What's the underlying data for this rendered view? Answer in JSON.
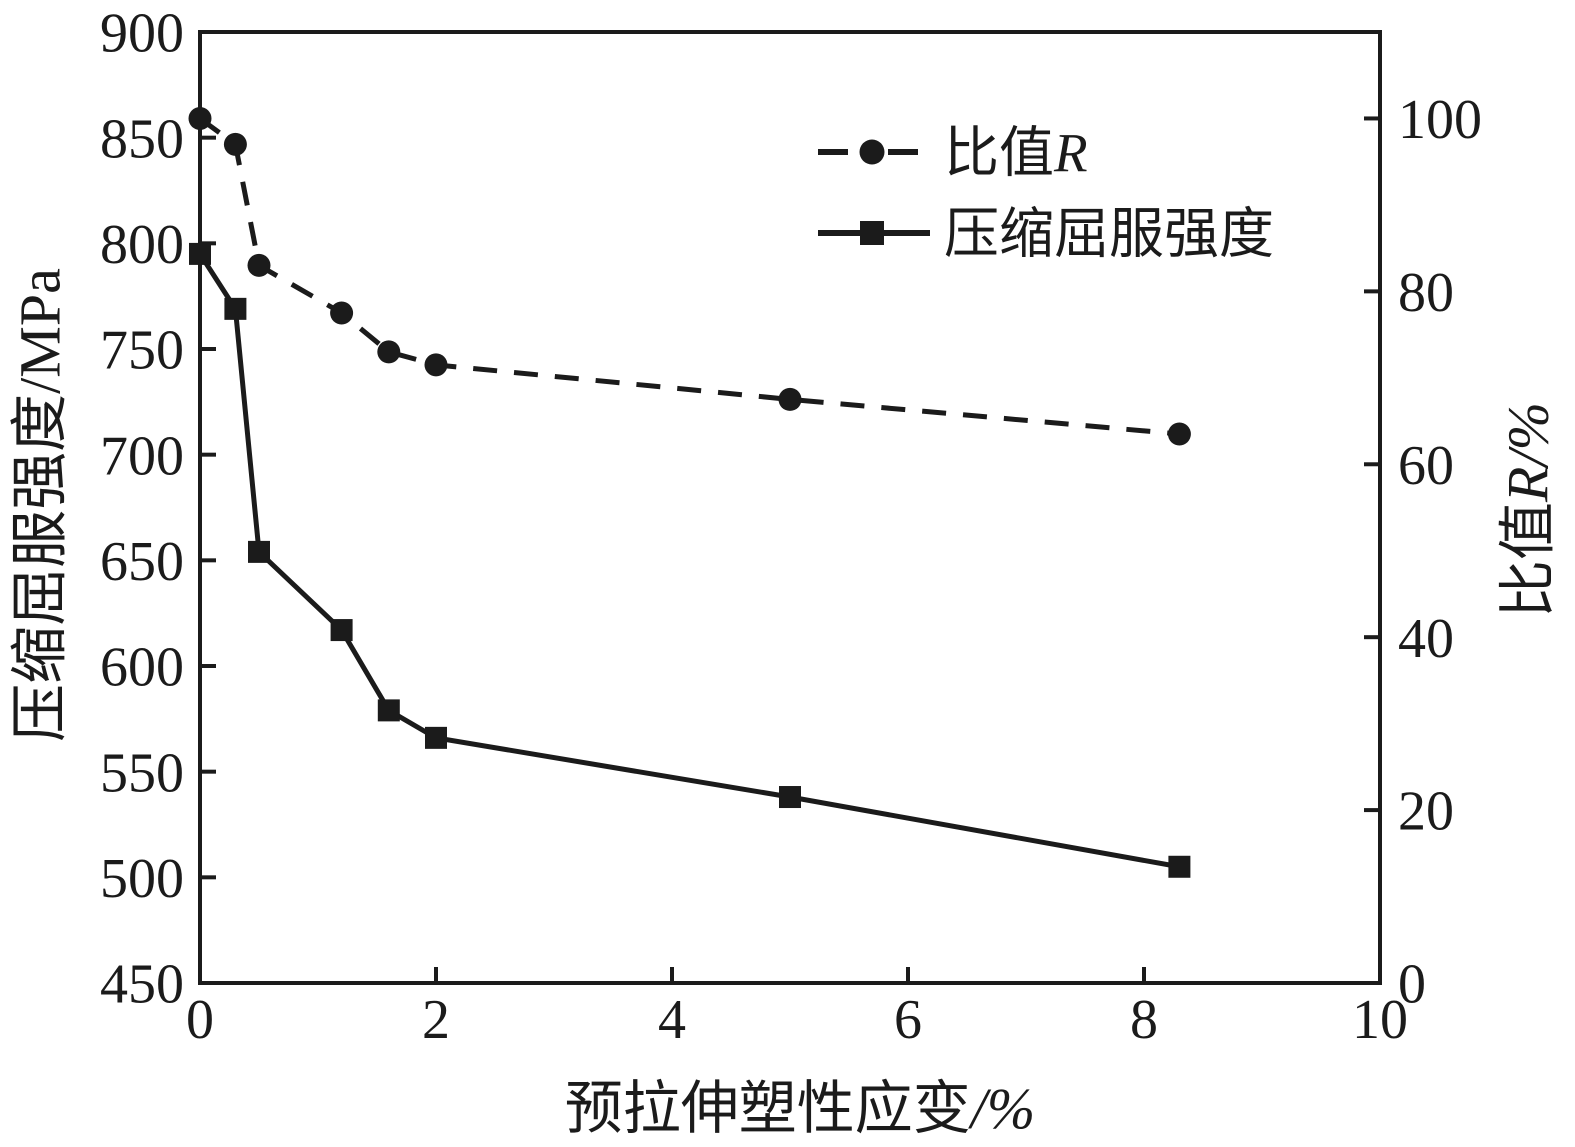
{
  "colors": {
    "ink": "#1b1b1b",
    "background": "#ffffff"
  },
  "chart_data": {
    "type": "line",
    "x": [
      0,
      0.3,
      0.5,
      1.2,
      1.6,
      2.0,
      5.0,
      8.3
    ],
    "series": [
      {
        "name": "比值R",
        "axis": "right",
        "marker": "circle",
        "line_style": "dashed",
        "values": [
          100,
          97,
          83,
          77.5,
          73,
          71.5,
          67.5,
          63.5
        ]
      },
      {
        "name": "压缩屈服强度",
        "axis": "left",
        "marker": "square",
        "line_style": "solid",
        "values": [
          795,
          769,
          654,
          617,
          579,
          566,
          538,
          505
        ]
      }
    ],
    "xlabel": "预拉伸塑性应变/%",
    "ylabel_left": "压缩屈服强度/MPa",
    "ylabel_right": "比值R/%",
    "xlim": [
      0,
      10
    ],
    "ylim_left": [
      450,
      900
    ],
    "ylim_right": [
      0,
      110
    ],
    "xticks": [
      0,
      2,
      4,
      6,
      8,
      10
    ],
    "yticks_left": [
      450,
      500,
      550,
      600,
      650,
      700,
      750,
      800,
      850,
      900
    ],
    "yticks_right": [
      0,
      20,
      40,
      60,
      80,
      100
    ],
    "grid": false,
    "legend_position": "inside-top-right"
  },
  "titles": {
    "x_parts": [
      {
        "t": "预拉伸塑性应变"
      },
      {
        "t": "/%",
        "italic": true
      }
    ],
    "left_parts": [
      {
        "t": "压缩屈服强度/MPa"
      }
    ],
    "right_parts": [
      {
        "t": "比值"
      },
      {
        "t": "R",
        "italic": true
      },
      {
        "t": "/%",
        "italic": true
      }
    ]
  },
  "legend": {
    "items": [
      {
        "marker": "circle",
        "line_style": "dashed",
        "parts": [
          {
            "t": "比值"
          },
          {
            "t": "R",
            "italic": true
          }
        ]
      },
      {
        "marker": "square",
        "line_style": "solid",
        "parts": [
          {
            "t": "压缩屈服强度"
          }
        ]
      }
    ]
  }
}
